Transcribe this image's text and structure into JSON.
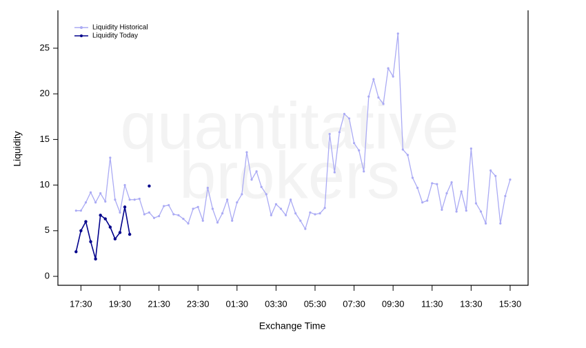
{
  "chart_data": {
    "type": "line",
    "watermark": [
      "quantitative",
      "brokers"
    ],
    "x_label": "Exchange Time",
    "y_label": "Liquidity",
    "xlim": [
      16.32,
      40.42
    ],
    "ylim": [
      -0.98,
      29.15
    ],
    "yticks": [
      0,
      5,
      10,
      15,
      20,
      25
    ],
    "xticks": [
      {
        "value": 17.5,
        "label": "17:30"
      },
      {
        "value": 19.5,
        "label": "19:30"
      },
      {
        "value": 21.5,
        "label": "21:30"
      },
      {
        "value": 23.5,
        "label": "23:30"
      },
      {
        "value": 25.5,
        "label": "01:30"
      },
      {
        "value": 27.5,
        "label": "03:30"
      },
      {
        "value": 29.5,
        "label": "05:30"
      },
      {
        "value": 31.5,
        "label": "07:30"
      },
      {
        "value": 33.5,
        "label": "09:30"
      },
      {
        "value": 35.5,
        "label": "11:30"
      },
      {
        "value": 37.5,
        "label": "13:30"
      },
      {
        "value": 39.5,
        "label": "15:30"
      }
    ],
    "legend": "top-left",
    "series": [
      {
        "name": "Liquidity Historical",
        "color": "#aaaaf4",
        "x": [
          17.25,
          17.5,
          17.75,
          18,
          18.25,
          18.5,
          18.75,
          19,
          19.25,
          19.5,
          19.75,
          20,
          20.25,
          20.5,
          20.75,
          21,
          21.25,
          21.5,
          21.75,
          22,
          22.25,
          22.5,
          22.75,
          23,
          23.25,
          23.5,
          23.75,
          24,
          24.25,
          24.5,
          24.75,
          25,
          25.25,
          25.5,
          25.75,
          26,
          26.25,
          26.5,
          26.75,
          27,
          27.25,
          27.5,
          27.75,
          28,
          28.25,
          28.5,
          28.75,
          29,
          29.25,
          29.5,
          29.75,
          30,
          30.25,
          30.5,
          30.75,
          31,
          31.25,
          31.5,
          31.75,
          32,
          32.25,
          32.5,
          32.75,
          33,
          33.25,
          33.5,
          33.75,
          34,
          34.25,
          34.5,
          34.75,
          35,
          35.25,
          35.5,
          35.75,
          36,
          36.25,
          36.5,
          36.75,
          37,
          37.25,
          37.5,
          37.75,
          38,
          38.25,
          38.5,
          38.75,
          39,
          39.25,
          39.5
        ],
        "values": [
          7.2,
          7.2,
          8.1,
          9.2,
          8.1,
          9.1,
          8.2,
          13.0,
          8.4,
          7.0,
          10.0,
          8.4,
          8.4,
          8.5,
          6.8,
          7.0,
          6.4,
          6.6,
          7.7,
          7.8,
          6.8,
          6.7,
          6.3,
          5.8,
          7.4,
          7.6,
          6.1,
          9.7,
          7.4,
          5.9,
          6.9,
          8.4,
          6.1,
          8.1,
          9.0,
          13.6,
          10.6,
          11.5,
          9.8,
          9.0,
          6.7,
          7.9,
          7.4,
          6.7,
          8.4,
          6.9,
          6.1,
          5.2,
          7.0,
          6.8,
          6.9,
          7.5,
          15.6,
          11.4,
          15.8,
          17.8,
          17.3,
          14.6,
          13.8,
          11.5,
          19.7,
          21.6,
          19.6,
          18.9,
          22.8,
          21.9,
          26.6,
          13.9,
          13.3,
          10.8,
          9.7,
          8.1,
          8.3,
          10.2,
          10.1,
          7.3,
          9.1,
          10.3,
          7.1,
          9.3,
          7.2,
          14.0,
          8.0,
          7.1,
          5.8,
          11.6,
          11.0,
          5.8,
          8.8,
          10.6
        ]
      },
      {
        "name": "Liquidity Today",
        "color": "#00008b",
        "x": [
          17.25,
          17.5,
          17.75,
          18,
          18.25,
          18.5,
          18.75,
          19,
          19.25,
          19.5,
          19.75,
          20,
          20.25,
          21
        ],
        "values": [
          2.7,
          5.0,
          6.0,
          3.8,
          1.9,
          6.7,
          6.3,
          5.4,
          4.1,
          4.8,
          7.6,
          4.6,
          null,
          9.9
        ]
      }
    ]
  }
}
